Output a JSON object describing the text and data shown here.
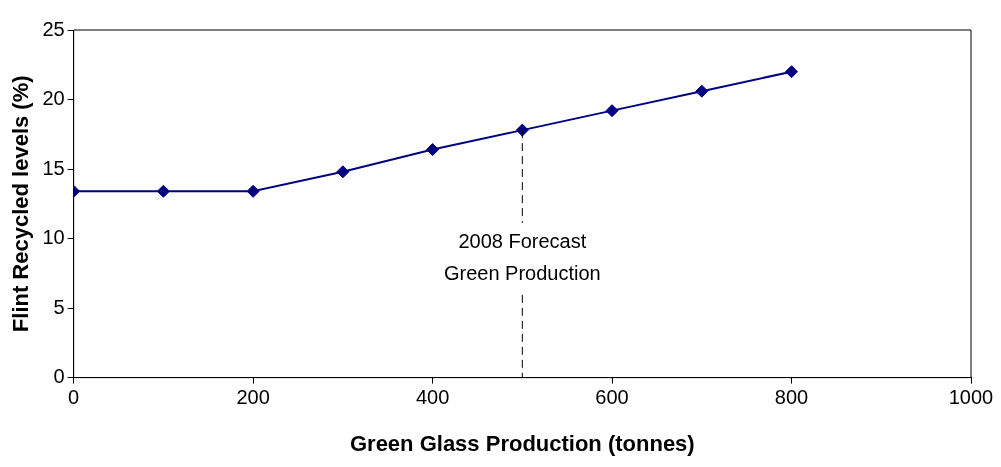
{
  "chart_data": {
    "type": "line",
    "xlabel": "Green Glass Production (tonnes)",
    "ylabel": "Flint Recycled levels (%)",
    "x": [
      0,
      100,
      200,
      300,
      400,
      500,
      600,
      700,
      800
    ],
    "series": [
      {
        "color": "#000080",
        "values": [
          13.4,
          13.4,
          13.4,
          14.8,
          16.4,
          17.8,
          19.2,
          20.6,
          22.0
        ]
      }
    ],
    "xlim": [
      0,
      1000
    ],
    "xticks": [
      0,
      200,
      400,
      600,
      800,
      1000
    ],
    "ylim": [
      0,
      25
    ],
    "yticks": [
      0,
      5,
      10,
      15,
      20,
      25
    ],
    "grid": false,
    "legend": false,
    "marker": "diamond",
    "line_style": "solid",
    "ref_lines": [
      {
        "axis": "x",
        "value": 500,
        "label": "2008 Forecast Green Production",
        "line_style": "dashed",
        "color": "#000000"
      }
    ]
  }
}
